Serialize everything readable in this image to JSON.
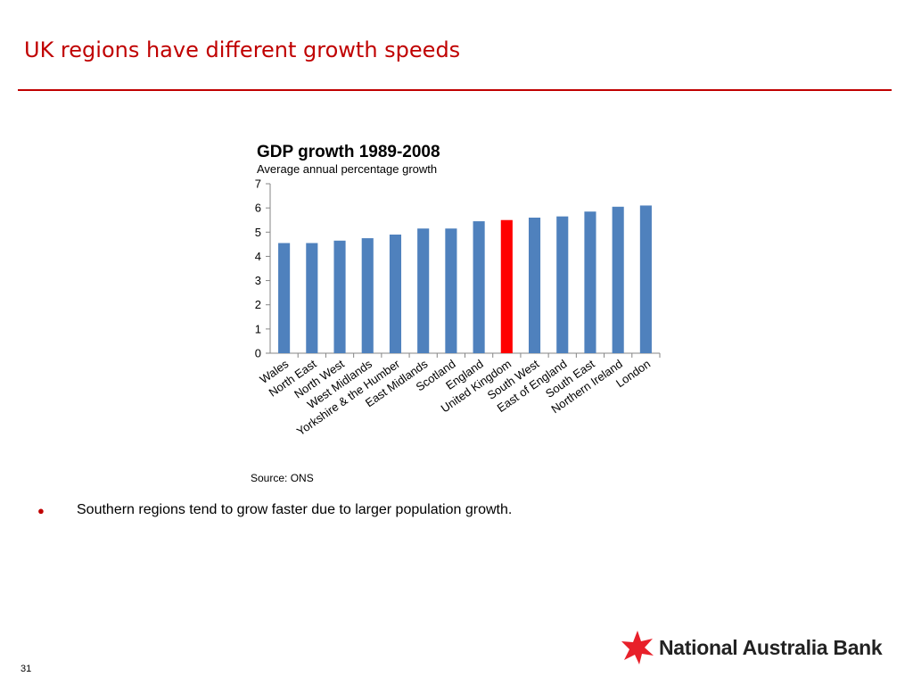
{
  "slide": {
    "title": "UK regions have different growth speeds",
    "bullet": "Southern regions tend to grow faster due to larger population growth.",
    "page_number": "31",
    "source": "Source: ONS",
    "logo_text": "National Australia Bank"
  },
  "colors": {
    "title": "#c00000",
    "bar": "#4f81bd",
    "highlight_bar": "#ff0000",
    "logo_star": "#e8202a"
  },
  "chart_data": {
    "type": "bar",
    "title": "GDP growth 1989-2008",
    "subtitle": "Average annual percentage growth",
    "categories": [
      "Wales",
      "North East",
      "North West",
      "West Midlands",
      "Yorkshire & the Humber",
      "East Midlands",
      "Scotland",
      "England",
      "United Kingdom",
      "South West",
      "East of England",
      "South East",
      "Northern Ireland",
      "London"
    ],
    "values": [
      4.55,
      4.55,
      4.65,
      4.75,
      4.9,
      5.15,
      5.15,
      5.45,
      5.5,
      5.6,
      5.65,
      5.85,
      6.05,
      6.1
    ],
    "highlight": "United Kingdom",
    "ylim": [
      0,
      7
    ],
    "yticks": [
      "0",
      "1",
      "2",
      "3",
      "4",
      "5",
      "6",
      "7"
    ],
    "grid": false,
    "legend": "none"
  }
}
